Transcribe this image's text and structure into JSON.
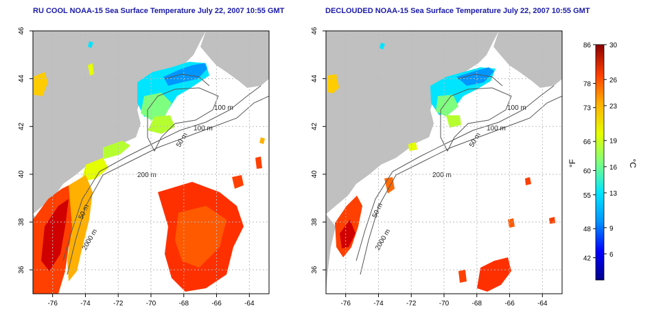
{
  "left_panel": {
    "title": "RU COOL NOAA-15 Sea Surface Temperature July 22, 2007 10:55 GMT",
    "contour_labels": [
      "100 m",
      "100 m",
      "50 m",
      "200 m",
      "50 m",
      "2000 m"
    ]
  },
  "right_panel": {
    "title": "DECLOUDED NOAA-15 Sea Surface Temperature July 22, 2007 10:55 GMT",
    "contour_labels": [
      "100 m",
      "100 m",
      "50 m",
      "200 m",
      "50 m",
      "2000 m"
    ]
  },
  "axes": {
    "x_ticks": [
      "-76",
      "-74",
      "-72",
      "-70",
      "-68",
      "-66",
      "-64"
    ],
    "y_ticks": [
      "36",
      "38",
      "40",
      "42",
      "44",
      "46"
    ],
    "lon_range": [
      -77.2,
      -62.8
    ],
    "lat_range": [
      35,
      46
    ]
  },
  "colorbar": {
    "f_label": "°F",
    "c_label": "°C",
    "c_ticks": [
      "30",
      "26",
      "23",
      "19",
      "16",
      "13",
      "9",
      "6"
    ],
    "f_ticks": [
      "86",
      "78",
      "73",
      "66",
      "60",
      "55",
      "48",
      "42"
    ],
    "colors": [
      "#00008b",
      "#0000ff",
      "#0096ff",
      "#00e5ff",
      "#7fff7f",
      "#e5ff00",
      "#ffb000",
      "#ff4000",
      "#8b0000"
    ]
  },
  "colors": {
    "land": "#c0c0c0",
    "contour": "#555555",
    "grid": "#bbbbbb"
  }
}
